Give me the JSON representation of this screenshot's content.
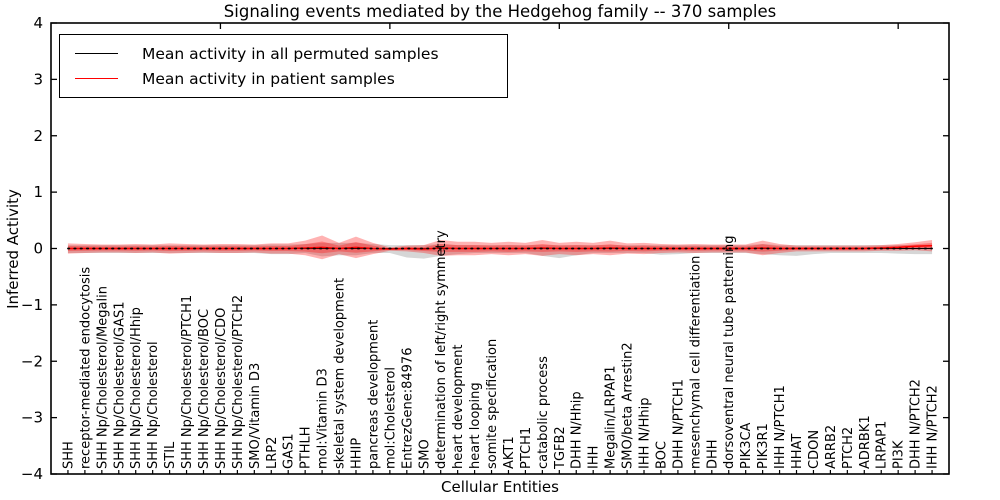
{
  "title": "Signaling events mediated by the Hedgehog family -- 370 samples",
  "axes": {
    "ylabel": "Inferred Activity",
    "xlabel": "Cellular Entities"
  },
  "legend": {
    "entries": [
      {
        "label": "Mean activity in all permuted samples",
        "color": "#000000"
      },
      {
        "label": "Mean activity in patient samples",
        "color": "#ff0000"
      }
    ]
  },
  "colors": {
    "patient": "#ff0000",
    "permuted": "#000000",
    "patient_band": "#ff0000",
    "permuted_band": "#808080"
  },
  "chart_data": {
    "type": "line",
    "title": "Signaling events mediated by the Hedgehog family -- 370 samples",
    "xlabel": "Cellular Entities",
    "ylabel": "Inferred Activity",
    "ylim": [
      -4,
      4
    ],
    "xlim": [
      0,
      53
    ],
    "yticks": [
      4,
      3,
      2,
      1,
      0,
      -1,
      -2,
      -3,
      -4
    ],
    "ytick_labels": [
      "4",
      "3",
      "2",
      "1",
      "0",
      "−1",
      "−2",
      "−3",
      "−4"
    ],
    "top_ticks": [
      10,
      20,
      30,
      40,
      50
    ],
    "grid": false,
    "legend_position": "upper left",
    "categories": [
      "SHH",
      "receptor-mediated endocytosis",
      "SHH Np/Cholesterol/Megalin",
      "SHH Np/Cholesterol/GAS1",
      "SHH Np/Cholesterol/Hhip",
      "SHH Np/Cholesterol",
      "STIL",
      "SHH Np/Cholesterol/PTCH1",
      "SHH Np/Cholesterol/BOC",
      "SHH Np/Cholesterol/CDO",
      "SHH Np/Cholesterol/PTCH2",
      "SMO/Vitamin D3",
      "LRP2",
      "GAS1",
      "PTHLH",
      "mol:Vitamin D3",
      "skeletal system development",
      "HHIP",
      "pancreas development",
      "mol:Cholesterol",
      "EntrezGene:84976",
      "SMO",
      "determination of left/right symmetry",
      "heart development",
      "heart looping",
      "somite specification",
      "AKT1",
      "PTCH1",
      "catabolic process",
      "TGFB2",
      "DHH N/Hhip",
      "IHH",
      "Megalin/LRPAP1",
      "SMO/beta Arrestin2",
      "IHH N/Hhip",
      "BOC",
      "DHH N/PTCH1",
      "mesenchymal cell differentiation",
      "DHH",
      "dorsoventral neural tube patterning",
      "PIK3CA",
      "PIK3R1",
      "IHH N/PTCH1",
      "HHAT",
      "CDON",
      "ARRB2",
      "PTCH2",
      "ADRBK1",
      "LRPAP1",
      "PI3K",
      "DHH N/PTCH2",
      "IHH N/PTCH2"
    ],
    "series": [
      {
        "name": "Mean activity in all permuted samples",
        "color": "#000000",
        "style": "dotted",
        "values": [
          0,
          0,
          0,
          0,
          0,
          0,
          0,
          0,
          0,
          0,
          0,
          0,
          0,
          0,
          0,
          0,
          0,
          0,
          0,
          0,
          0,
          0,
          0,
          0,
          0,
          0,
          0,
          0,
          0,
          0,
          0,
          0,
          0,
          0,
          0,
          0,
          0,
          0,
          0,
          0,
          0,
          0,
          0,
          0,
          0,
          0,
          0,
          0,
          0,
          0,
          0,
          0
        ]
      },
      {
        "name": "Mean activity in patient samples",
        "color": "#ff0000",
        "style": "solid",
        "values": [
          0,
          0,
          0,
          0,
          0,
          0,
          0,
          0,
          0,
          0,
          0,
          0,
          0,
          0,
          0.01,
          0.02,
          0,
          0.02,
          0,
          -0.01,
          0,
          -0.01,
          0.01,
          0,
          0,
          0,
          0,
          0,
          0.01,
          0,
          0,
          0,
          0.01,
          0,
          0,
          0,
          0,
          0,
          0,
          0,
          0,
          0.01,
          0,
          0,
          0,
          0,
          0,
          0,
          0.01,
          0.02,
          0.04,
          0.05
        ]
      }
    ],
    "bands": [
      {
        "name": "patient-sample-spread",
        "color": "#ff0000",
        "opacity": 0.3,
        "halfwidth": [
          0.09,
          0.08,
          0.07,
          0.07,
          0.08,
          0.07,
          0.09,
          0.08,
          0.07,
          0.08,
          0.08,
          0.07,
          0.09,
          0.09,
          0.13,
          0.21,
          0.1,
          0.19,
          0.1,
          0.03,
          0.05,
          0.07,
          0.14,
          0.12,
          0.12,
          0.1,
          0.12,
          0.1,
          0.14,
          0.1,
          0.12,
          0.1,
          0.13,
          0.09,
          0.1,
          0.08,
          0.07,
          0.08,
          0.07,
          0.07,
          0.07,
          0.13,
          0.08,
          0.05,
          0.05,
          0.05,
          0.05,
          0.05,
          0.05,
          0.06,
          0.07,
          0.1
        ]
      },
      {
        "name": "permuted-sample-spread",
        "color": "#808080",
        "opacity": 0.32,
        "upper": [
          0.06,
          0.06,
          0.06,
          0.06,
          0.06,
          0.06,
          0.06,
          0.06,
          0.06,
          0.06,
          0.06,
          0.06,
          0.07,
          0.07,
          0.08,
          0.1,
          0.1,
          0.1,
          0.08,
          0.06,
          0.06,
          0.06,
          0.08,
          0.06,
          0.06,
          0.06,
          0.06,
          0.06,
          0.06,
          0.06,
          0.06,
          0.06,
          0.06,
          0.06,
          0.06,
          0.06,
          0.06,
          0.06,
          0.06,
          0.06,
          0.06,
          0.08,
          0.06,
          0.06,
          0.06,
          0.06,
          0.06,
          0.06,
          0.06,
          0.06,
          0.06,
          0.07
        ],
        "lower": [
          0.08,
          0.08,
          0.08,
          0.08,
          0.08,
          0.08,
          0.08,
          0.08,
          0.08,
          0.08,
          0.08,
          0.08,
          0.1,
          0.1,
          0.08,
          0.14,
          0.12,
          0.12,
          0.08,
          0.08,
          0.16,
          0.18,
          0.13,
          0.1,
          0.08,
          0.08,
          0.08,
          0.08,
          0.13,
          0.17,
          0.12,
          0.08,
          0.08,
          0.08,
          0.08,
          0.11,
          0.1,
          0.08,
          0.08,
          0.08,
          0.08,
          0.1,
          0.12,
          0.13,
          0.1,
          0.08,
          0.08,
          0.08,
          0.08,
          0.09,
          0.1,
          0.1
        ]
      }
    ]
  }
}
